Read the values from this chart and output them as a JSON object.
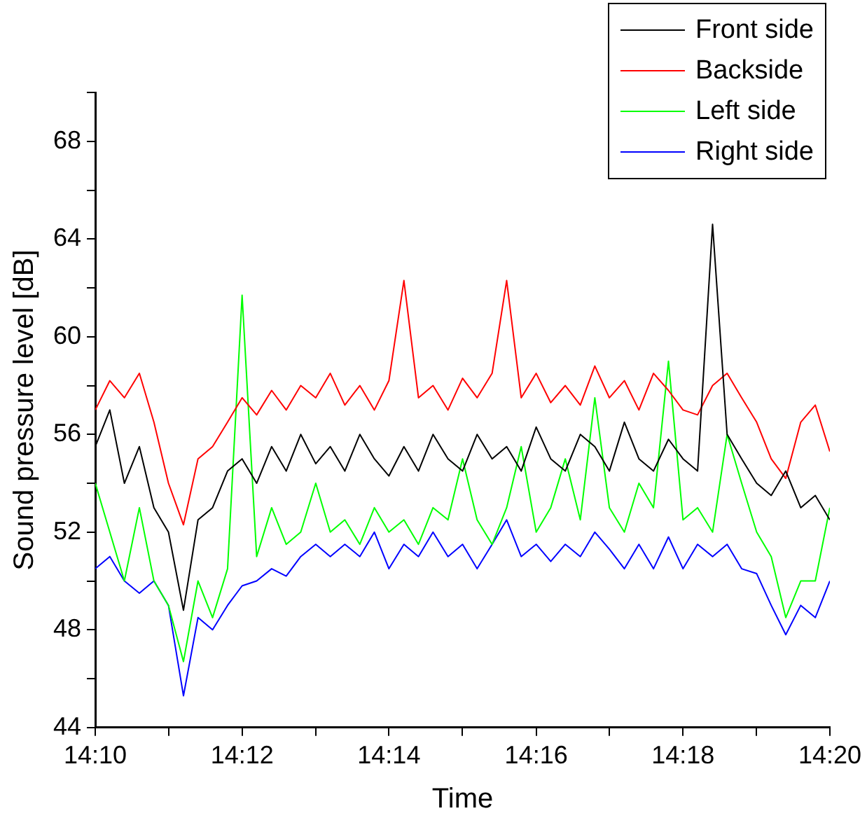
{
  "chart_data": {
    "type": "line",
    "xlabel": "Time",
    "ylabel": "Sound pressure level [dB]",
    "x": [
      14.1667,
      14.17,
      14.1733,
      14.1767,
      14.18,
      14.1833,
      14.1867,
      14.19,
      14.1933,
      14.1967,
      14.2,
      14.2033,
      14.2067,
      14.21,
      14.2133,
      14.2167,
      14.22,
      14.2233,
      14.2267,
      14.23,
      14.2333,
      14.2367,
      14.24,
      14.2433,
      14.2467,
      14.25,
      14.2533,
      14.2567,
      14.26,
      14.2633,
      14.2667,
      14.27,
      14.2733,
      14.2767,
      14.28,
      14.2833,
      14.2867,
      14.29,
      14.2933,
      14.2967,
      14.3,
      14.3033,
      14.3067,
      14.31,
      14.3133,
      14.3167,
      14.32,
      14.3233,
      14.3267,
      14.33,
      14.3333
    ],
    "series": [
      {
        "name": "Front side",
        "color": "#000000",
        "values": [
          55.5,
          57,
          54,
          55.5,
          53,
          52,
          48.8,
          52.5,
          53,
          54.5,
          55,
          54,
          55.5,
          54.5,
          56,
          54.8,
          55.5,
          54.5,
          56,
          55,
          54.3,
          55.5,
          54.5,
          56,
          55,
          54.5,
          56,
          55,
          55.5,
          54.5,
          56.3,
          55,
          54.5,
          56,
          55.5,
          54.5,
          56.5,
          55,
          54.5,
          55.8,
          55,
          54.5,
          64.6,
          56,
          55,
          54,
          53.5,
          54.5,
          53,
          53.5,
          52.5
        ]
      },
      {
        "name": "Backside",
        "color": "#ff0000",
        "values": [
          57,
          58.2,
          57.5,
          58.5,
          56.5,
          54,
          52.3,
          55,
          55.5,
          56.5,
          57.5,
          56.8,
          57.8,
          57,
          58,
          57.5,
          58.5,
          57.2,
          58,
          57,
          58.2,
          62.3,
          57.5,
          58,
          57,
          58.3,
          57.5,
          58.5,
          62.3,
          57.5,
          58.5,
          57.3,
          58,
          57.2,
          58.8,
          57.5,
          58.2,
          57,
          58.5,
          57.8,
          57,
          56.8,
          58,
          58.5,
          57.5,
          56.5,
          55,
          54.2,
          56.5,
          57.2,
          55.3
        ]
      },
      {
        "name": "Left side",
        "color": "#00ff00",
        "values": [
          54,
          52,
          50,
          53,
          50,
          49,
          46.7,
          50,
          48.5,
          50.5,
          61.7,
          51,
          53,
          51.5,
          52,
          54,
          52,
          52.5,
          51.5,
          53,
          52,
          52.5,
          51.5,
          53,
          52.5,
          55,
          52.5,
          51.5,
          53,
          55.5,
          52,
          53,
          55,
          52.5,
          57.5,
          53,
          52,
          54,
          53,
          59,
          52.5,
          53,
          52,
          56,
          54,
          52,
          51,
          48.5,
          50,
          50,
          53
        ]
      },
      {
        "name": "Right side",
        "color": "#0000ff",
        "values": [
          50.5,
          51,
          50,
          49.5,
          50,
          49,
          45.3,
          48.5,
          48,
          49,
          49.8,
          50,
          50.5,
          50.2,
          51,
          51.5,
          51,
          51.5,
          51,
          52,
          50.5,
          51.5,
          51,
          52,
          51,
          51.5,
          50.5,
          51.5,
          52.5,
          51,
          51.5,
          50.8,
          51.5,
          51,
          52,
          51.3,
          50.5,
          51.5,
          50.5,
          51.8,
          50.5,
          51.5,
          51,
          51.5,
          50.5,
          50.3,
          49,
          47.8,
          49,
          48.5,
          50
        ]
      }
    ],
    "xlim": [
      14.1667,
      14.3333
    ],
    "xticks": [
      {
        "value": 14.1667,
        "label": "14:10"
      },
      {
        "value": 14.1833,
        "label": null
      },
      {
        "value": 14.2,
        "label": "14:12"
      },
      {
        "value": 14.2167,
        "label": null
      },
      {
        "value": 14.2333,
        "label": "14:14"
      },
      {
        "value": 14.25,
        "label": null
      },
      {
        "value": 14.2667,
        "label": "14:16"
      },
      {
        "value": 14.2833,
        "label": null
      },
      {
        "value": 14.3,
        "label": "14:18"
      },
      {
        "value": 14.3167,
        "label": null
      },
      {
        "value": 14.3333,
        "label": "14:20"
      }
    ],
    "ylim": [
      44,
      70
    ],
    "yticks": [
      44,
      {
        "value": 46,
        "label": null
      },
      48,
      {
        "value": 50,
        "label": null
      },
      52,
      {
        "value": 54,
        "label": null
      },
      56,
      {
        "value": 58,
        "label": null
      },
      60,
      {
        "value": 62,
        "label": null
      },
      64,
      {
        "value": 66,
        "label": null
      },
      68,
      {
        "value": 70,
        "label": null
      }
    ],
    "legend": "top right",
    "grid": false,
    "marker": "none",
    "line_style": "solid"
  }
}
